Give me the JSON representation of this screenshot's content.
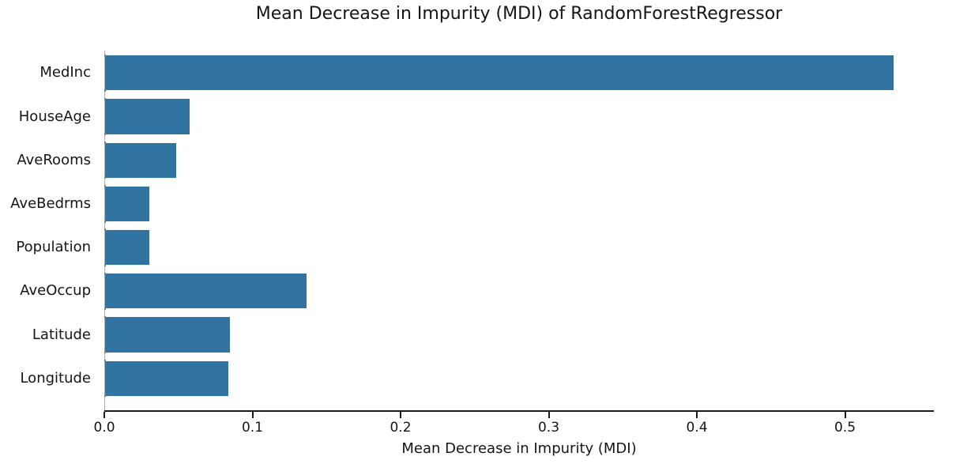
{
  "chart_data": {
    "type": "bar",
    "orientation": "horizontal",
    "title": "Mean Decrease in Impurity (MDI) of RandomForestRegressor",
    "xlabel": "Mean Decrease in Impurity (MDI)",
    "ylabel": "",
    "categories": [
      "MedInc",
      "HouseAge",
      "AveRooms",
      "AveBedrms",
      "Population",
      "AveOccup",
      "Latitude",
      "Longitude"
    ],
    "values": [
      0.532,
      0.057,
      0.048,
      0.03,
      0.03,
      0.136,
      0.084,
      0.083
    ],
    "xlim": [
      0.0,
      0.56
    ],
    "xticks": [
      0.0,
      0.1,
      0.2,
      0.3,
      0.4,
      0.5
    ],
    "xtick_labels": [
      "0.0",
      "0.1",
      "0.2",
      "0.3",
      "0.4",
      "0.5"
    ],
    "grid": false,
    "legend": null,
    "colors": {
      "bar": "#3274a1",
      "axis_line": "#1a1a1a",
      "left_spine": "#b0b0b0",
      "text": "#151515",
      "background": "#ffffff"
    }
  }
}
